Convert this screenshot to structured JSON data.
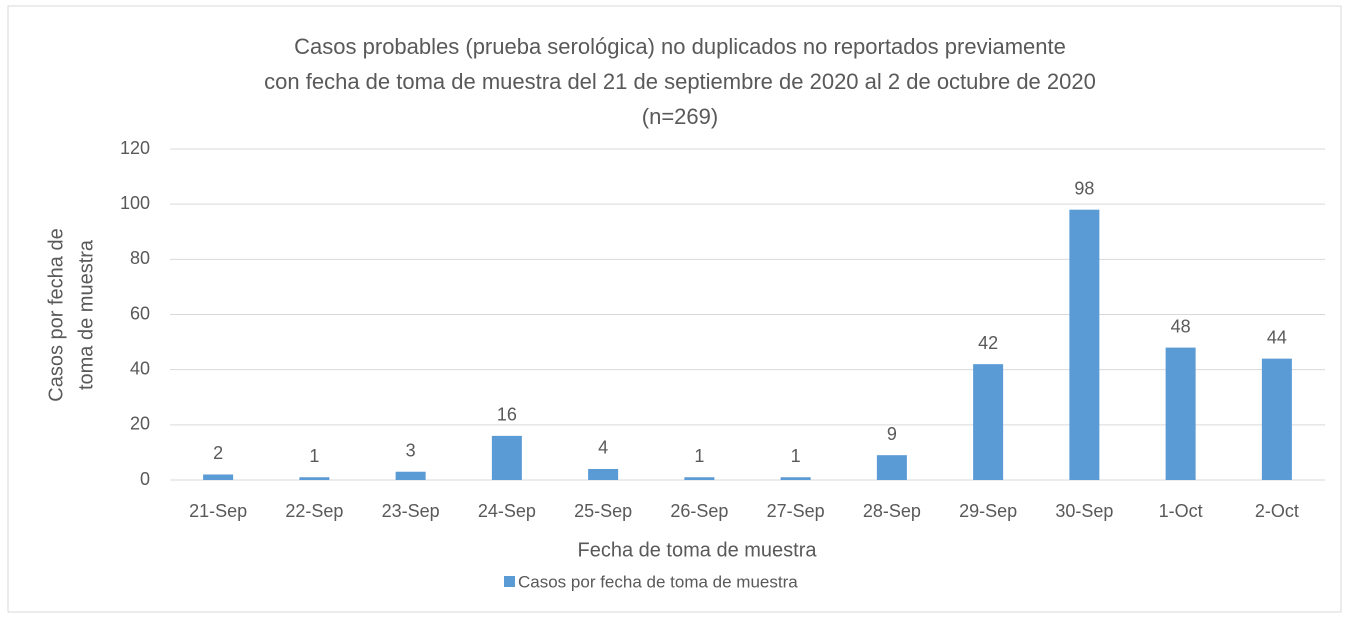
{
  "chart_data": {
    "type": "bar",
    "title": [
      "Casos probables (prueba serológica) no duplicados no reportados previamente",
      "con fecha de toma de muestra del  21 de septiembre de 2020 al 2 de octubre de 2020",
      "(n=269)"
    ],
    "x_label": "Fecha de toma de muestra",
    "y_label": [
      "Casos por fecha de",
      "toma de muestra"
    ],
    "categories": [
      "21-Sep",
      "22-Sep",
      "23-Sep",
      "24-Sep",
      "25-Sep",
      "26-Sep",
      "27-Sep",
      "28-Sep",
      "29-Sep",
      "30-Sep",
      "1-Oct",
      "2-Oct"
    ],
    "series": [
      {
        "name": "Casos por fecha de toma de muestra",
        "color": "#5b9bd5",
        "values": [
          2,
          1,
          3,
          16,
          4,
          1,
          1,
          9,
          42,
          98,
          48,
          44
        ]
      }
    ],
    "ylim": [
      0,
      120
    ],
    "yticks": [
      0,
      20,
      40,
      60,
      80,
      100,
      120
    ],
    "grid": true,
    "legend": "bottom"
  }
}
